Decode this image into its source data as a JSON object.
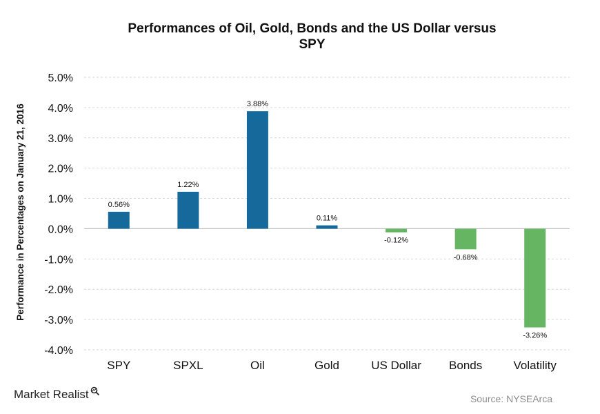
{
  "brand": {
    "name": "Market Realist"
  },
  "source": "Source: NYSEArca",
  "colors": {
    "positive": "#166a9b",
    "negative": "#66b562",
    "grid": "#d6d6d6",
    "axis": "#bfbfbf"
  },
  "chart_data": {
    "type": "bar",
    "title_lines": [
      "Performances  of Oil, Gold, Bonds and the US Dollar  versus",
      "SPY"
    ],
    "ylabel": "Performance in Percentages on January 21, 2016",
    "xlabel": "",
    "ylim": [
      -4.0,
      5.0
    ],
    "yticks": [
      5.0,
      4.0,
      3.0,
      2.0,
      1.0,
      0.0,
      -1.0,
      -2.0,
      -3.0,
      -4.0
    ],
    "ytick_labels": [
      "5.0%",
      "4.0%",
      "3.0%",
      "2.0%",
      "1.0%",
      "0.0%",
      "-1.0%",
      "-2.0%",
      "-3.0%",
      "-4.0%"
    ],
    "grid": true,
    "categories": [
      "SPY",
      "SPXL",
      "Oil",
      "Gold",
      "US Dollar",
      "Bonds",
      "Volatility"
    ],
    "values": [
      0.56,
      1.22,
      3.88,
      0.11,
      -0.12,
      -0.68,
      -3.26
    ],
    "data_labels": [
      "0.56%",
      "1.22%",
      "3.88%",
      "0.11%",
      "-0.12%",
      "-0.68%",
      "-3.26%"
    ]
  }
}
